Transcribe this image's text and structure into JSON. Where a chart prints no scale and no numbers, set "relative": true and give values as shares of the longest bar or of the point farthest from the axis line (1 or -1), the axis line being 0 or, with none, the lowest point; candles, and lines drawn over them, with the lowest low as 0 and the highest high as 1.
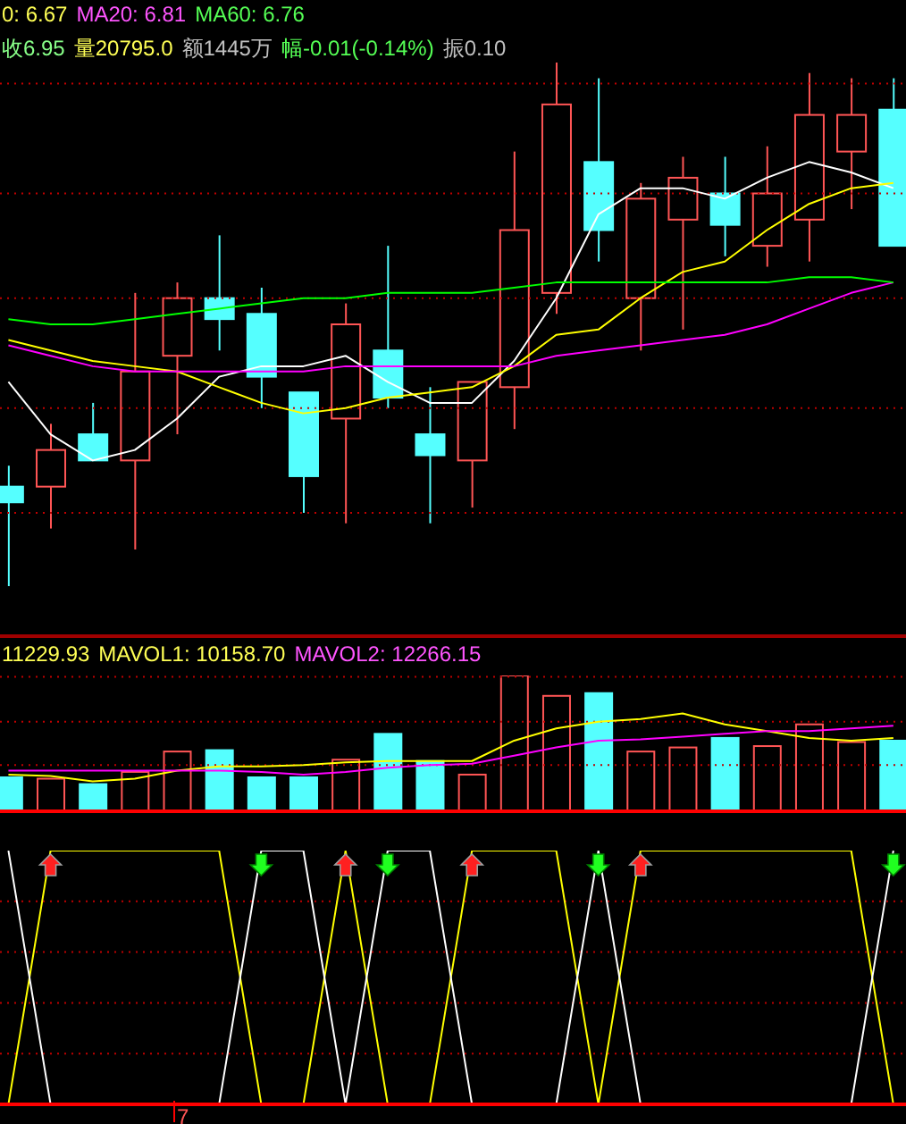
{
  "chart_data": [
    {
      "type": "candlestick",
      "relative": true,
      "tick_labels": false,
      "ref_lines": [
        {
          "axis": "y",
          "value": 0.96,
          "color": "#c00000",
          "line_style": "dotted"
        },
        {
          "axis": "y",
          "value": 0.75,
          "color": "#c00000",
          "line_style": "dotted"
        },
        {
          "axis": "y",
          "value": 0.55,
          "color": "#c00000",
          "line_style": "dotted"
        },
        {
          "axis": "y",
          "value": 0.34,
          "color": "#c00000",
          "line_style": "dotted"
        },
        {
          "axis": "y",
          "value": 0.14,
          "color": "#c00000",
          "line_style": "dotted"
        }
      ],
      "annotations": [
        "0: 6.67",
        "MA20: 6.81",
        "MA60: 6.76",
        "收6.95",
        "量20795.0",
        "额1445万",
        "幅-0.01(-0.14%)",
        "振0.10"
      ],
      "categories": [
        null,
        null,
        null,
        null,
        null,
        null,
        null,
        null,
        null,
        null,
        null,
        null,
        null,
        null,
        null,
        null,
        null,
        null,
        null,
        null,
        null,
        null
      ],
      "ohlc": [
        [
          0.19,
          0.23,
          0,
          0.16
        ],
        [
          0.19,
          0.31,
          0.11,
          0.26
        ],
        [
          0.29,
          0.35,
          0.24,
          0.24
        ],
        [
          0.24,
          0.56,
          0.07,
          0.41
        ],
        [
          0.44,
          0.58,
          0.29,
          0.55
        ],
        [
          0.55,
          0.67,
          0.45,
          0.51
        ],
        [
          0.52,
          0.57,
          0.34,
          0.4
        ],
        [
          0.37,
          0.37,
          0.14,
          0.21
        ],
        [
          0.32,
          0.54,
          0.12,
          0.5
        ],
        [
          0.45,
          0.65,
          0.34,
          0.36
        ],
        [
          0.29,
          0.38,
          0.12,
          0.25
        ],
        [
          0.24,
          0.39,
          0.15,
          0.39
        ],
        [
          0.38,
          0.83,
          0.3,
          0.68
        ],
        [
          0.56,
          1,
          0.52,
          0.92
        ],
        [
          0.81,
          0.97,
          0.62,
          0.68
        ],
        [
          0.55,
          0.77,
          0.45,
          0.74
        ],
        [
          0.7,
          0.82,
          0.49,
          0.78
        ],
        [
          0.75,
          0.82,
          0.63,
          0.69
        ],
        [
          0.65,
          0.84,
          0.61,
          0.75
        ],
        [
          0.7,
          0.98,
          0.62,
          0.9
        ],
        [
          0.83,
          0.97,
          0.72,
          0.9
        ],
        [
          0.91,
          0.97,
          0.65,
          0.65
        ]
      ],
      "colors": [
        "#55ffff",
        "#ff5555",
        "#55ffff",
        "#ff5555",
        "#ff5555",
        "#55ffff",
        "#55ffff",
        "#55ffff",
        "#ff5555",
        "#55ffff",
        "#55ffff",
        "#ff5555",
        "#ff5555",
        "#ff5555",
        "#55ffff",
        "#ff5555",
        "#ff5555",
        "#55ffff",
        "#ff5555",
        "#ff5555",
        "#ff5555",
        "#55ffff"
      ],
      "series": [
        {
          "type": "line",
          "color": "#ffffff",
          "values": [
            0.39,
            0.29,
            0.24,
            0.26,
            0.32,
            0.4,
            0.42,
            0.42,
            0.44,
            0.39,
            0.35,
            0.35,
            0.43,
            0.55,
            0.71,
            0.76,
            0.76,
            0.74,
            0.78,
            0.81,
            0.79,
            0.76
          ]
        },
        {
          "type": "line",
          "color": "#ffff00",
          "values": [
            0.47,
            0.45,
            0.43,
            0.42,
            0.41,
            0.38,
            0.35,
            0.33,
            0.34,
            0.36,
            0.37,
            0.38,
            0.42,
            0.48,
            0.49,
            0.55,
            0.6,
            0.62,
            0.68,
            0.73,
            0.76,
            0.77
          ]
        },
        {
          "type": "line",
          "color": "#ff00ff",
          "values": [
            0.46,
            0.44,
            0.42,
            0.41,
            0.41,
            0.41,
            0.41,
            0.41,
            0.42,
            0.42,
            0.42,
            0.42,
            0.42,
            0.44,
            0.45,
            0.46,
            0.47,
            0.48,
            0.5,
            0.53,
            0.56,
            0.58
          ]
        },
        {
          "type": "line",
          "color": "#00ff00",
          "values": [
            0.51,
            0.5,
            0.5,
            0.51,
            0.52,
            0.53,
            0.54,
            0.55,
            0.55,
            0.56,
            0.56,
            0.56,
            0.57,
            0.58,
            0.58,
            0.58,
            0.58,
            0.58,
            0.58,
            0.59,
            0.59,
            0.58
          ]
        }
      ]
    },
    {
      "type": "bar",
      "relative": true,
      "tick_labels": false,
      "ref_lines": [
        {
          "axis": "y",
          "value": 0.99,
          "color": "#c00000",
          "line_style": "dotted"
        },
        {
          "axis": "y",
          "value": 0.66,
          "color": "#c00000",
          "line_style": "dotted"
        },
        {
          "axis": "y",
          "value": 0.34,
          "color": "#c00000",
          "line_style": "dotted"
        }
      ],
      "annotations": [
        "11229.93",
        "MAVOL1: 10158.70",
        "MAVOL2: 12266.15"
      ],
      "categories": [
        null,
        null,
        null,
        null,
        null,
        null,
        null,
        null,
        null,
        null,
        null,
        null,
        null,
        null,
        null,
        null,
        null,
        null,
        null,
        null,
        null,
        null
      ],
      "series": [
        {
          "type": "bar",
          "values": [
            0.25,
            0.24,
            0.2,
            0.29,
            0.44,
            0.45,
            0.25,
            0.25,
            0.38,
            0.57,
            0.37,
            0.27,
            1,
            0.85,
            0.87,
            0.44,
            0.47,
            0.54,
            0.48,
            0.64,
            0.51,
            0.52
          ],
          "colors": [
            "#55ffff",
            "#ff5555",
            "#55ffff",
            "#ff5555",
            "#ff5555",
            "#55ffff",
            "#55ffff",
            "#55ffff",
            "#ff5555",
            "#55ffff",
            "#55ffff",
            "#ff5555",
            "#ff5555",
            "#ff5555",
            "#55ffff",
            "#ff5555",
            "#ff5555",
            "#55ffff",
            "#ff5555",
            "#ff5555",
            "#ff5555",
            "#55ffff"
          ]
        },
        {
          "type": "line",
          "color": "#ffff00",
          "values": [
            0.27,
            0.26,
            0.22,
            0.24,
            0.3,
            0.33,
            0.33,
            0.34,
            0.36,
            0.37,
            0.37,
            0.37,
            0.52,
            0.61,
            0.66,
            0.68,
            0.72,
            0.64,
            0.59,
            0.54,
            0.52,
            0.54
          ]
        },
        {
          "type": "line",
          "color": "#ff00ff",
          "values": [
            0.3,
            0.3,
            0.3,
            0.3,
            0.3,
            0.3,
            0.29,
            0.27,
            0.29,
            0.32,
            0.34,
            0.35,
            0.41,
            0.47,
            0.52,
            0.53,
            0.55,
            0.57,
            0.59,
            0.59,
            0.61,
            0.63
          ]
        }
      ]
    },
    {
      "type": "line",
      "relative": true,
      "tick_labels": false,
      "ref_lines": [
        {
          "axis": "y",
          "value": 0.8,
          "color": "#c00000",
          "line_style": "dotted"
        },
        {
          "axis": "y",
          "value": 0.6,
          "color": "#c00000",
          "line_style": "dotted"
        },
        {
          "axis": "y",
          "value": 0.4,
          "color": "#c00000",
          "line_style": "dotted"
        },
        {
          "axis": "y",
          "value": 0.2,
          "color": "#c00000",
          "line_style": "dotted"
        }
      ],
      "annotations": [
        "7"
      ],
      "categories": [
        null,
        null,
        null,
        null,
        null,
        null,
        null,
        null,
        null,
        null,
        null,
        null,
        null,
        null,
        null,
        null,
        null,
        null,
        null,
        null,
        null,
        null
      ],
      "series": [
        {
          "color": "#ffff00",
          "values": [
            0,
            1,
            1,
            1,
            1,
            1,
            0,
            0,
            1,
            0,
            0,
            1,
            1,
            1,
            0,
            1,
            1,
            1,
            1,
            1,
            1,
            0
          ]
        },
        {
          "color": "#ffffff",
          "values": [
            1,
            0,
            0,
            0,
            0,
            0,
            1,
            1,
            0,
            1,
            1,
            0,
            0,
            0,
            1,
            0,
            0,
            0,
            0,
            0,
            0,
            1
          ]
        }
      ]
    }
  ]
}
